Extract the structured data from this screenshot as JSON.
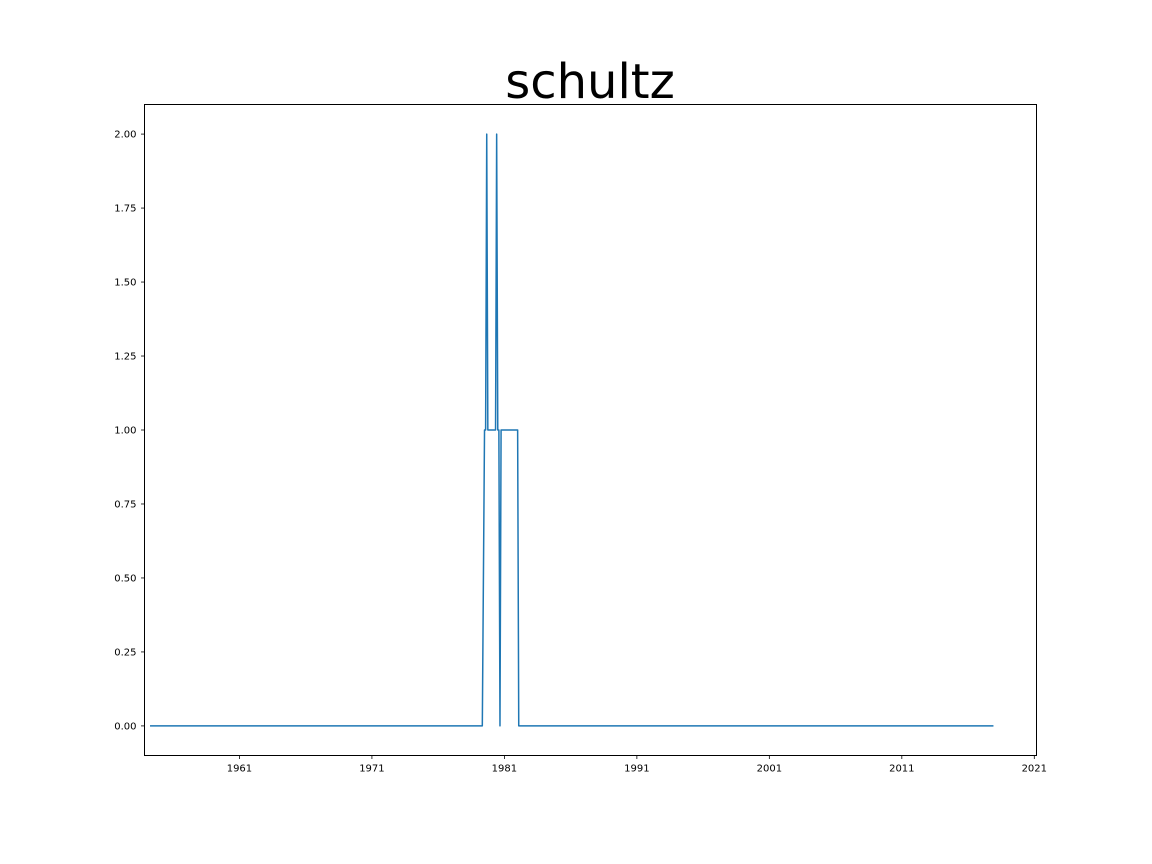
{
  "chart_data": {
    "type": "line",
    "title": "schultz",
    "xlabel": "",
    "ylabel": "",
    "x_axis": "date",
    "xlim": [
      "1953-11-01",
      "2021-03-01"
    ],
    "ylim": [
      -0.1,
      2.1
    ],
    "xticks": [
      "1961",
      "1971",
      "1981",
      "1991",
      "2001",
      "2011",
      "2021"
    ],
    "yticks": [
      "0.00",
      "0.25",
      "0.50",
      "0.75",
      "1.00",
      "1.25",
      "1.50",
      "1.75",
      "2.00"
    ],
    "grid": false,
    "legend": "none",
    "series": [
      {
        "color": "#1f77b4",
        "x": [
          "1954-04-01",
          "1979-05-01",
          "1979-07-01",
          "1979-08-01",
          "1979-09-01",
          "1979-10-01",
          "1980-04-01",
          "1980-05-01",
          "1980-06-01",
          "1980-07-01",
          "1980-08-01",
          "1980-09-01",
          "1980-10-01",
          "1981-01-01",
          "1981-03-01",
          "1981-04-01",
          "1981-05-01",
          "1981-06-01",
          "1981-07-01",
          "1981-08-01",
          "1981-09-01",
          "1981-10-01",
          "1981-11-01",
          "1981-12-01",
          "1982-01-01",
          "1982-02-01",
          "2017-12-01"
        ],
        "y": [
          0,
          0,
          1,
          1,
          2,
          1,
          1,
          1,
          2,
          1,
          1,
          0,
          1,
          1,
          1,
          1,
          1,
          1,
          1,
          1,
          1,
          1,
          1,
          1,
          1,
          0,
          0
        ]
      }
    ]
  }
}
